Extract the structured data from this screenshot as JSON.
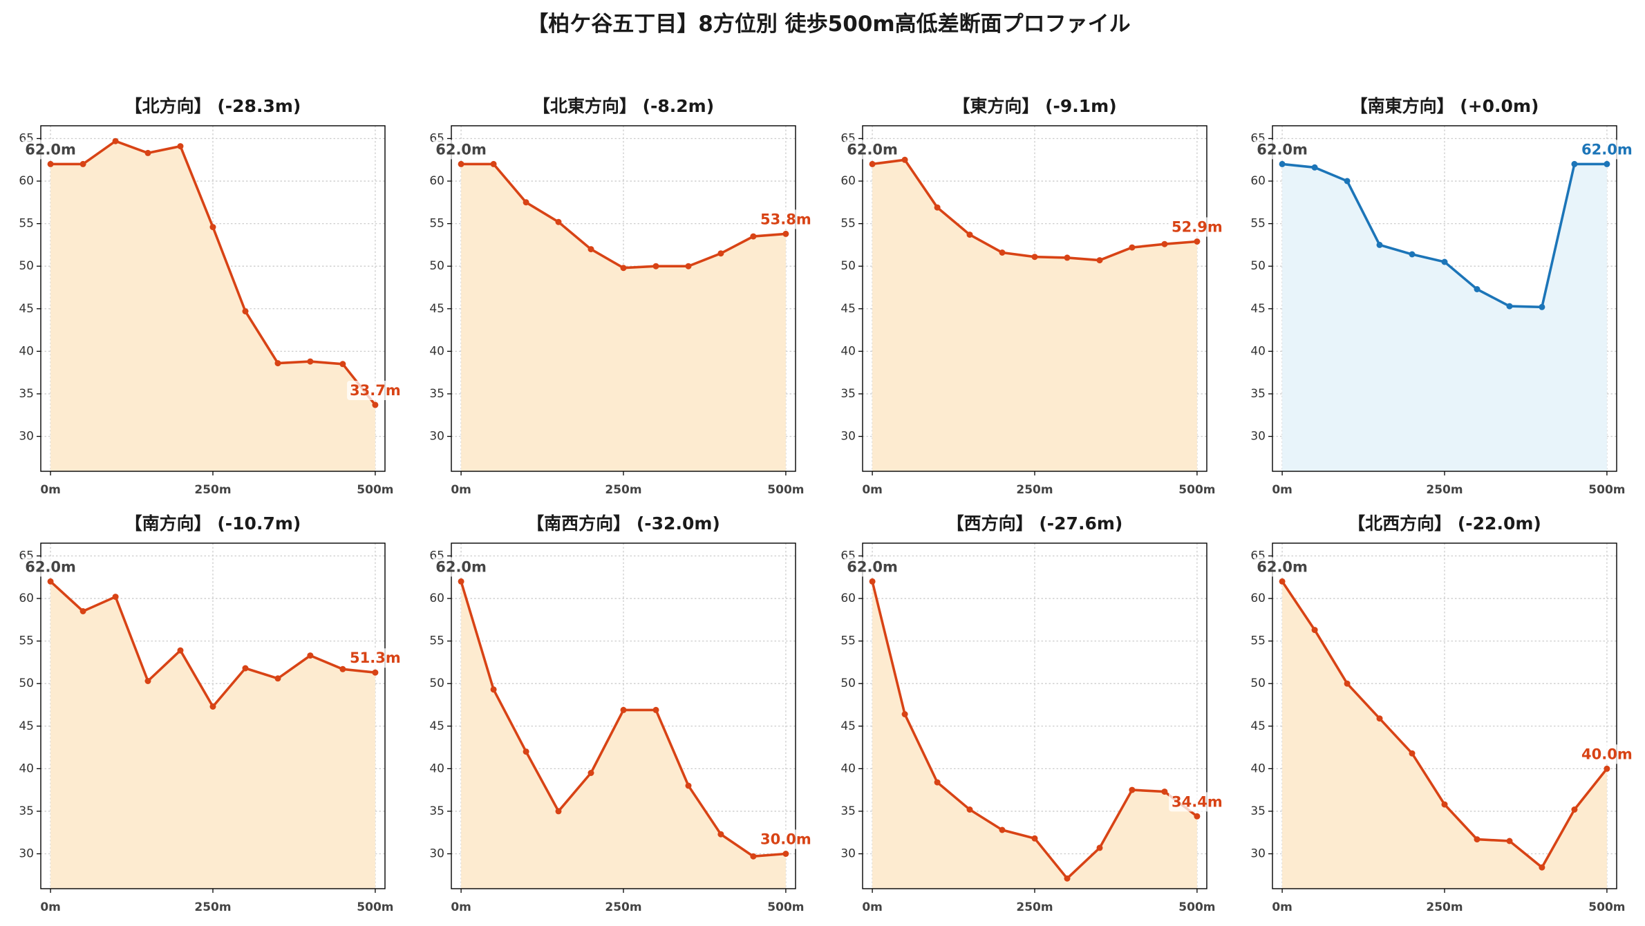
{
  "title": "【柏ケ谷五丁目】8方位別 徒歩500m高低差断面プロファイル",
  "chart_data": [
    {
      "type": "area",
      "title": "【北方向】 (-28.3m)",
      "x": [
        0,
        50,
        100,
        150,
        200,
        250,
        300,
        350,
        400,
        450,
        500
      ],
      "y": [
        62.0,
        62.0,
        64.7,
        63.3,
        64.1,
        54.6,
        44.7,
        38.6,
        38.8,
        38.5,
        33.7
      ],
      "start_label": "62.0m",
      "end_label": "33.7m",
      "line_color": "#d84315",
      "fill_color": "#fdebd0",
      "start_label_color": "#444444",
      "xlim": [
        -15,
        515
      ],
      "ylim": [
        25.9,
        66.5
      ],
      "xticks": [
        0,
        250,
        500
      ],
      "xtick_labels": [
        "0m",
        "250m",
        "500m"
      ],
      "yticks": [
        30,
        35,
        40,
        45,
        50,
        55,
        60,
        65
      ],
      "grid": true
    },
    {
      "type": "area",
      "title": "【北東方向】 (-8.2m)",
      "x": [
        0,
        50,
        100,
        150,
        200,
        250,
        300,
        350,
        400,
        450,
        500
      ],
      "y": [
        62.0,
        62.0,
        57.5,
        55.2,
        52.0,
        49.8,
        50.0,
        50.0,
        51.5,
        53.5,
        53.8
      ],
      "start_label": "62.0m",
      "end_label": "53.8m",
      "line_color": "#d84315",
      "fill_color": "#fdebd0",
      "start_label_color": "#444444",
      "xlim": [
        -15,
        515
      ],
      "ylim": [
        25.9,
        66.5
      ],
      "xticks": [
        0,
        250,
        500
      ],
      "xtick_labels": [
        "0m",
        "250m",
        "500m"
      ],
      "yticks": [
        30,
        35,
        40,
        45,
        50,
        55,
        60,
        65
      ],
      "grid": true
    },
    {
      "type": "area",
      "title": "【東方向】 (-9.1m)",
      "x": [
        0,
        50,
        100,
        150,
        200,
        250,
        300,
        350,
        400,
        450,
        500
      ],
      "y": [
        62.0,
        62.5,
        56.9,
        53.7,
        51.6,
        51.1,
        51.0,
        50.7,
        52.2,
        52.6,
        52.9
      ],
      "start_label": "62.0m",
      "end_label": "52.9m",
      "line_color": "#d84315",
      "fill_color": "#fdebd0",
      "start_label_color": "#444444",
      "xlim": [
        -15,
        515
      ],
      "ylim": [
        25.9,
        66.5
      ],
      "xticks": [
        0,
        250,
        500
      ],
      "xtick_labels": [
        "0m",
        "250m",
        "500m"
      ],
      "yticks": [
        30,
        35,
        40,
        45,
        50,
        55,
        60,
        65
      ],
      "grid": true
    },
    {
      "type": "area",
      "title": "【南東方向】 (+0.0m)",
      "x": [
        0,
        50,
        100,
        150,
        200,
        250,
        300,
        350,
        400,
        450,
        500
      ],
      "y": [
        62.0,
        61.6,
        60.0,
        52.5,
        51.4,
        50.5,
        47.3,
        45.3,
        45.2,
        62.0,
        62.0
      ],
      "start_label": "62.0m",
      "end_label": "62.0m",
      "line_color": "#1c75b8",
      "fill_color": "#e8f4fa",
      "start_label_color": "#444444",
      "xlim": [
        -15,
        515
      ],
      "ylim": [
        25.9,
        66.5
      ],
      "xticks": [
        0,
        250,
        500
      ],
      "xtick_labels": [
        "0m",
        "250m",
        "500m"
      ],
      "yticks": [
        30,
        35,
        40,
        45,
        50,
        55,
        60,
        65
      ],
      "grid": true
    },
    {
      "type": "area",
      "title": "【南方向】 (-10.7m)",
      "x": [
        0,
        50,
        100,
        150,
        200,
        250,
        300,
        350,
        400,
        450,
        500
      ],
      "y": [
        62.0,
        58.5,
        60.2,
        50.3,
        53.9,
        47.3,
        51.8,
        50.6,
        53.3,
        51.7,
        51.3
      ],
      "start_label": "62.0m",
      "end_label": "51.3m",
      "line_color": "#d84315",
      "fill_color": "#fdebd0",
      "start_label_color": "#444444",
      "xlim": [
        -15,
        515
      ],
      "ylim": [
        25.9,
        66.5
      ],
      "xticks": [
        0,
        250,
        500
      ],
      "xtick_labels": [
        "0m",
        "250m",
        "500m"
      ],
      "yticks": [
        30,
        35,
        40,
        45,
        50,
        55,
        60,
        65
      ],
      "grid": true
    },
    {
      "type": "area",
      "title": "【南西方向】 (-32.0m)",
      "x": [
        0,
        50,
        100,
        150,
        200,
        250,
        300,
        350,
        400,
        450,
        500
      ],
      "y": [
        62.0,
        49.3,
        42.0,
        35.0,
        39.5,
        46.9,
        46.9,
        38.0,
        32.3,
        29.7,
        30.0
      ],
      "start_label": "62.0m",
      "end_label": "30.0m",
      "line_color": "#d84315",
      "fill_color": "#fdebd0",
      "start_label_color": "#444444",
      "xlim": [
        -15,
        515
      ],
      "ylim": [
        25.9,
        66.5
      ],
      "xticks": [
        0,
        250,
        500
      ],
      "xtick_labels": [
        "0m",
        "250m",
        "500m"
      ],
      "yticks": [
        30,
        35,
        40,
        45,
        50,
        55,
        60,
        65
      ],
      "grid": true
    },
    {
      "type": "area",
      "title": "【西方向】 (-27.6m)",
      "x": [
        0,
        50,
        100,
        150,
        200,
        250,
        300,
        350,
        400,
        450,
        500
      ],
      "y": [
        62.0,
        46.4,
        38.4,
        35.2,
        32.8,
        31.8,
        27.1,
        30.7,
        37.5,
        37.3,
        34.4
      ],
      "start_label": "62.0m",
      "end_label": "34.4m",
      "line_color": "#d84315",
      "fill_color": "#fdebd0",
      "start_label_color": "#444444",
      "xlim": [
        -15,
        515
      ],
      "ylim": [
        25.9,
        66.5
      ],
      "xticks": [
        0,
        250,
        500
      ],
      "xtick_labels": [
        "0m",
        "250m",
        "500m"
      ],
      "yticks": [
        30,
        35,
        40,
        45,
        50,
        55,
        60,
        65
      ],
      "grid": true
    },
    {
      "type": "area",
      "title": "【北西方向】 (-22.0m)",
      "x": [
        0,
        50,
        100,
        150,
        200,
        250,
        300,
        350,
        400,
        450,
        500
      ],
      "y": [
        62.0,
        56.3,
        50.0,
        45.9,
        41.8,
        35.8,
        31.7,
        31.5,
        28.4,
        35.2,
        40.0
      ],
      "start_label": "62.0m",
      "end_label": "40.0m",
      "line_color": "#d84315",
      "fill_color": "#fdebd0",
      "start_label_color": "#444444",
      "xlim": [
        -15,
        515
      ],
      "ylim": [
        25.9,
        66.5
      ],
      "xticks": [
        0,
        250,
        500
      ],
      "xtick_labels": [
        "0m",
        "250m",
        "500m"
      ],
      "yticks": [
        30,
        35,
        40,
        45,
        50,
        55,
        60,
        65
      ],
      "grid": true
    }
  ]
}
